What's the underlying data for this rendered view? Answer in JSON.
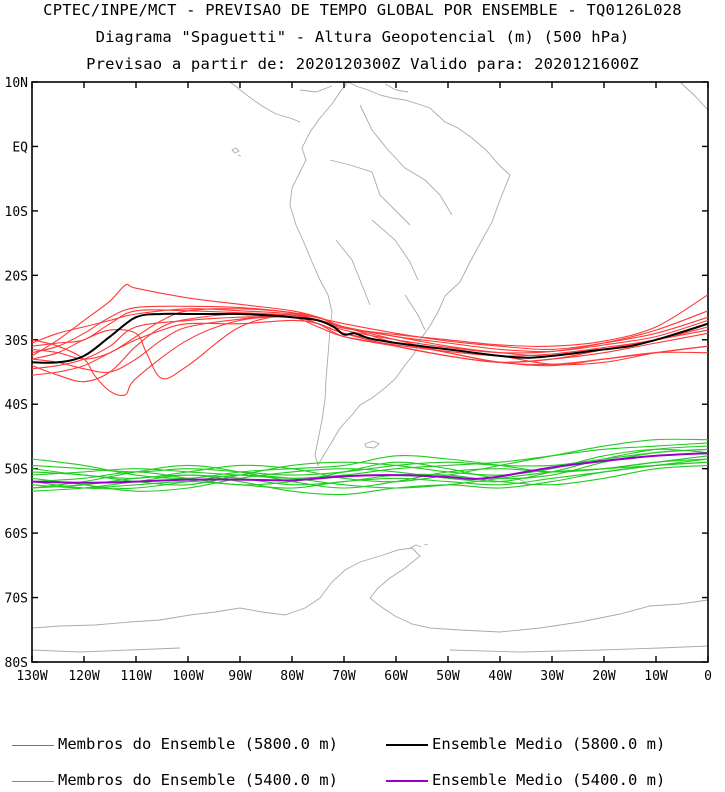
{
  "titles": {
    "line1": "CPTEC/INPE/MCT - PREVISAO DE TEMPO GLOBAL POR ENSEMBLE - TQ0126L028",
    "line2": "Diagrama \"Spaguetti\" - Altura Geopotencial (m) (500 hPa)",
    "line3": "Previsao a partir de: 2020120300Z  Valido para: 2020121600Z"
  },
  "legend": {
    "members_5800": "Membros do Ensemble (5800.0 m)",
    "mean_5800": "Ensemble Medio (5800.0 m)",
    "members_5400": "Membros do Ensemble (5400.0 m)",
    "mean_5400": "Ensemble Medio (5400.0 m)"
  },
  "colors": {
    "members_5800": "#ff3838",
    "mean_5800": "#000000",
    "members_5400": "#22cc22",
    "mean_5400": "#9900cc",
    "coast": "#aaaaaa",
    "axis": "#000000"
  },
  "chart_data": {
    "type": "line",
    "map_projection": "latitude-longitude",
    "xlim": [
      -130,
      0
    ],
    "ylim": [
      -80,
      10
    ],
    "x_ticks": [
      -130,
      -120,
      -110,
      -100,
      -90,
      -80,
      -70,
      -60,
      -50,
      -40,
      -30,
      -20,
      -10,
      0
    ],
    "x_tick_labels": [
      "130W",
      "120W",
      "110W",
      "100W",
      "90W",
      "80W",
      "70W",
      "60W",
      "50W",
      "40W",
      "30W",
      "20W",
      "10W",
      "0"
    ],
    "y_ticks": [
      10,
      0,
      -10,
      -20,
      -30,
      -40,
      -50,
      -60,
      -70,
      -80
    ],
    "y_tick_labels": [
      "10N",
      "EQ",
      "10S",
      "20S",
      "30S",
      "40S",
      "50S",
      "60S",
      "70S",
      "80S"
    ],
    "series": [
      {
        "name": "Ensemble Medio (5800.0 m)",
        "group": "mean_5800",
        "x": [
          -130,
          -125,
          -120,
          -115,
          -110,
          -105,
          -100,
          -95,
          -90,
          -85,
          -80,
          -75,
          -72,
          -70,
          -68,
          -65,
          -60,
          -55,
          -50,
          -45,
          -40,
          -35,
          -30,
          -25,
          -20,
          -15,
          -10,
          -5,
          0
        ],
        "y": [
          -33.5,
          -33.5,
          -32.5,
          -29.5,
          -26.5,
          -26.0,
          -26.0,
          -26.0,
          -26.0,
          -26.2,
          -26.5,
          -27.0,
          -28.0,
          -29.2,
          -29.0,
          -29.8,
          -30.5,
          -31.0,
          -31.5,
          -32.0,
          -32.5,
          -32.8,
          -32.5,
          -32.0,
          -31.5,
          -31.0,
          -30.0,
          -28.8,
          -27.5
        ]
      },
      {
        "name": "Ensemble Medio (5400.0 m)",
        "group": "mean_5400",
        "x": [
          -130,
          -120,
          -110,
          -100,
          -90,
          -80,
          -70,
          -60,
          -50,
          -45,
          -40,
          -30,
          -20,
          -10,
          0
        ],
        "y": [
          -52.0,
          -52.2,
          -52.0,
          -51.7,
          -51.7,
          -51.8,
          -51.2,
          -51.0,
          -51.3,
          -51.6,
          -51.2,
          -49.8,
          -48.8,
          -48.0,
          -47.6
        ]
      },
      {
        "group": "members_5800",
        "x": [
          -130,
          -125,
          -120,
          -115,
          -110,
          -100,
          -90,
          -80,
          -75,
          -70,
          -60,
          -50,
          -40,
          -30,
          -20,
          -10,
          0
        ],
        "y": [
          -31.0,
          -30.5,
          -30.0,
          -27.5,
          -25.5,
          -25.5,
          -25.8,
          -26.2,
          -27.0,
          -28.5,
          -30.0,
          -31.2,
          -32.0,
          -31.8,
          -30.5,
          -28.5,
          -25.5
        ]
      },
      {
        "group": "members_5800",
        "x": [
          -130,
          -125,
          -120,
          -115,
          -110,
          -100,
          -90,
          -80,
          -75,
          -70,
          -60,
          -50,
          -40,
          -30,
          -20,
          -10,
          0
        ],
        "y": [
          -34.5,
          -34.0,
          -33.0,
          -31.0,
          -28.0,
          -27.0,
          -26.5,
          -26.5,
          -27.5,
          -29.5,
          -31.0,
          -32.5,
          -33.5,
          -33.0,
          -32.0,
          -30.5,
          -29.0
        ]
      },
      {
        "group": "members_5800",
        "x": [
          -130,
          -125,
          -120,
          -115,
          -112,
          -110,
          -100,
          -90,
          -80,
          -75,
          -70,
          -60,
          -50,
          -40,
          -30,
          -20,
          -10,
          0
        ],
        "y": [
          -32.5,
          -30.0,
          -27.0,
          -24.0,
          -21.5,
          -22.0,
          -23.5,
          -24.5,
          -25.5,
          -26.5,
          -28.0,
          -29.5,
          -31.0,
          -32.0,
          -32.5,
          -31.5,
          -30.0,
          -27.5
        ]
      },
      {
        "group": "members_5800",
        "x": [
          -130,
          -125,
          -120,
          -115,
          -110,
          -105,
          -100,
          -90,
          -80,
          -70,
          -60,
          -50,
          -40,
          -30,
          -20,
          -10,
          0
        ],
        "y": [
          -33.0,
          -33.5,
          -34.5,
          -35.0,
          -33.0,
          -30.0,
          -28.0,
          -26.8,
          -26.2,
          -28.0,
          -30.5,
          -31.5,
          -32.5,
          -33.8,
          -33.5,
          -32.0,
          -31.0
        ]
      },
      {
        "group": "members_5800",
        "x": [
          -130,
          -125,
          -120,
          -115,
          -110,
          -105,
          -100,
          -90,
          -80,
          -75,
          -70,
          -60,
          -50,
          -40,
          -30,
          -20,
          -10,
          0
        ],
        "y": [
          -35.5,
          -35.0,
          -34.0,
          -32.0,
          -30.0,
          -28.5,
          -27.5,
          -27.5,
          -27.0,
          -27.5,
          -29.0,
          -30.5,
          -32.0,
          -33.5,
          -33.8,
          -33.0,
          -32.0,
          -31.0
        ]
      },
      {
        "group": "members_5800",
        "x": [
          -130,
          -125,
          -120,
          -115,
          -110,
          -105,
          -100,
          -90,
          -80,
          -75,
          -70,
          -60,
          -50,
          -40,
          -30,
          -20,
          -10,
          0
        ],
        "y": [
          -31.5,
          -32.0,
          -33.0,
          -32.0,
          -29.5,
          -27.0,
          -25.5,
          -25.2,
          -25.8,
          -27.0,
          -28.2,
          -29.2,
          -30.0,
          -30.8,
          -31.0,
          -30.2,
          -28.0,
          -23.0
        ]
      },
      {
        "group": "members_5800",
        "x": [
          -130,
          -125,
          -120,
          -118,
          -115,
          -112,
          -110,
          -100,
          -90,
          -80,
          -75,
          -70,
          -60,
          -50,
          -40,
          -30,
          -20,
          -10,
          0
        ],
        "y": [
          -30.0,
          -31.0,
          -33.0,
          -35.5,
          -38.0,
          -38.5,
          -36.0,
          -30.0,
          -27.0,
          -26.5,
          -27.5,
          -29.0,
          -31.0,
          -32.5,
          -33.5,
          -33.0,
          -31.5,
          -30.0,
          -28.5
        ]
      },
      {
        "group": "members_5800",
        "x": [
          -130,
          -125,
          -120,
          -115,
          -110,
          -105,
          -100,
          -90,
          -80,
          -75,
          -70,
          -60,
          -50,
          -40,
          -30,
          -20,
          -10,
          0
        ],
        "y": [
          -34.0,
          -35.5,
          -36.5,
          -35.0,
          -31.0,
          -28.0,
          -26.8,
          -26.0,
          -26.5,
          -28.0,
          -29.5,
          -30.8,
          -31.8,
          -32.5,
          -32.2,
          -31.2,
          -30.0,
          -28.0
        ]
      },
      {
        "group": "members_5800",
        "x": [
          -130,
          -125,
          -120,
          -115,
          -110,
          -108,
          -105,
          -100,
          -90,
          -80,
          -75,
          -70,
          -60,
          -50,
          -40,
          -30,
          -20,
          -10,
          0
        ],
        "y": [
          -33.0,
          -32.0,
          -30.0,
          -28.5,
          -29.0,
          -32.0,
          -36.0,
          -34.0,
          -28.0,
          -26.0,
          -26.5,
          -28.0,
          -30.0,
          -32.0,
          -33.5,
          -34.0,
          -33.0,
          -32.0,
          -32.0
        ]
      },
      {
        "group": "members_5800",
        "x": [
          -130,
          -125,
          -120,
          -115,
          -110,
          -100,
          -90,
          -80,
          -75,
          -70,
          -60,
          -50,
          -40,
          -30,
          -20,
          -10,
          0
        ],
        "y": [
          -30.5,
          -29.0,
          -28.0,
          -27.0,
          -26.0,
          -25.2,
          -25.5,
          -26.0,
          -27.0,
          -28.0,
          -29.5,
          -30.5,
          -31.5,
          -31.8,
          -30.8,
          -29.5,
          -27.0
        ]
      },
      {
        "group": "members_5800",
        "x": [
          -130,
          -125,
          -120,
          -115,
          -110,
          -100,
          -90,
          -80,
          -70,
          -60,
          -50,
          -40,
          -30,
          -20,
          -10,
          0
        ],
        "y": [
          -32.0,
          -31.0,
          -29.0,
          -26.5,
          -25.0,
          -24.8,
          -25.0,
          -25.8,
          -27.5,
          -29.0,
          -30.2,
          -31.0,
          -31.5,
          -30.5,
          -29.0,
          -26.5
        ]
      },
      {
        "group": "members_5400",
        "x": [
          -130,
          -120,
          -110,
          -100,
          -90,
          -80,
          -70,
          -60,
          -50,
          -40,
          -30,
          -20,
          -10,
          0
        ],
        "y": [
          -51.0,
          -50.5,
          -50.0,
          -50.5,
          -51.0,
          -51.5,
          -51.0,
          -50.0,
          -49.5,
          -49.0,
          -48.0,
          -47.0,
          -46.5,
          -46.0
        ]
      },
      {
        "group": "members_5400",
        "x": [
          -130,
          -120,
          -110,
          -100,
          -90,
          -80,
          -70,
          -60,
          -50,
          -40,
          -30,
          -20,
          -10,
          0
        ],
        "y": [
          -52.5,
          -53.0,
          -52.5,
          -52.0,
          -52.5,
          -53.0,
          -52.0,
          -51.5,
          -52.0,
          -52.5,
          -51.5,
          -50.5,
          -49.5,
          -48.5
        ]
      },
      {
        "group": "members_5400",
        "x": [
          -130,
          -120,
          -110,
          -100,
          -90,
          -80,
          -70,
          -60,
          -50,
          -40,
          -30,
          -20,
          -10,
          0
        ],
        "y": [
          -48.5,
          -49.5,
          -51.0,
          -51.5,
          -50.5,
          -50.0,
          -49.5,
          -48.0,
          -48.5,
          -49.5,
          -50.5,
          -50.0,
          -49.0,
          -48.0
        ]
      },
      {
        "group": "members_5400",
        "x": [
          -130,
          -120,
          -110,
          -100,
          -90,
          -80,
          -70,
          -60,
          -50,
          -40,
          -30,
          -20,
          -10,
          0
        ],
        "y": [
          -53.5,
          -53.0,
          -52.0,
          -51.0,
          -52.0,
          -53.5,
          -54.0,
          -53.0,
          -52.5,
          -53.0,
          -52.0,
          -50.5,
          -49.5,
          -49.0
        ]
      },
      {
        "group": "members_5400",
        "x": [
          -130,
          -120,
          -110,
          -100,
          -90,
          -80,
          -70,
          -60,
          -50,
          -40,
          -30,
          -20,
          -10,
          0
        ],
        "y": [
          -50.0,
          -51.0,
          -51.5,
          -50.5,
          -49.5,
          -50.0,
          -51.5,
          -52.0,
          -51.0,
          -49.5,
          -48.0,
          -46.5,
          -45.5,
          -45.5
        ]
      },
      {
        "group": "members_5400",
        "x": [
          -130,
          -120,
          -110,
          -100,
          -90,
          -80,
          -70,
          -60,
          -50,
          -40,
          -30,
          -20,
          -10,
          0
        ],
        "y": [
          -52.0,
          -51.5,
          -50.5,
          -51.5,
          -52.5,
          -52.0,
          -50.5,
          -49.0,
          -50.0,
          -51.5,
          -51.0,
          -49.0,
          -47.5,
          -47.0
        ]
      },
      {
        "group": "members_5400",
        "x": [
          -130,
          -120,
          -110,
          -100,
          -90,
          -80,
          -70,
          -60,
          -50,
          -40,
          -30,
          -20,
          -10,
          0
        ],
        "y": [
          -51.5,
          -52.5,
          -53.5,
          -53.0,
          -51.5,
          -50.5,
          -50.0,
          -50.5,
          -51.5,
          -52.0,
          -50.5,
          -48.5,
          -47.0,
          -46.5
        ]
      },
      {
        "group": "members_5400",
        "x": [
          -130,
          -120,
          -110,
          -100,
          -90,
          -80,
          -70,
          -60,
          -50,
          -40,
          -30,
          -20,
          -10,
          0
        ],
        "y": [
          -53.0,
          -52.0,
          -50.5,
          -49.5,
          -50.5,
          -52.0,
          -53.0,
          -52.0,
          -50.5,
          -50.0,
          -50.5,
          -50.0,
          -49.0,
          -48.5
        ]
      },
      {
        "group": "members_5400",
        "x": [
          -130,
          -120,
          -110,
          -100,
          -90,
          -80,
          -70,
          -60,
          -50,
          -40,
          -30,
          -20,
          -10,
          0
        ],
        "y": [
          -50.5,
          -51.0,
          -52.0,
          -52.5,
          -51.0,
          -49.5,
          -49.0,
          -49.5,
          -50.5,
          -51.0,
          -50.0,
          -48.0,
          -47.0,
          -47.5
        ]
      },
      {
        "group": "members_5400",
        "x": [
          -130,
          -120,
          -110,
          -100,
          -90,
          -80,
          -70,
          -60,
          -50,
          -40,
          -30,
          -20,
          -10,
          0
        ],
        "y": [
          -52.0,
          -53.0,
          -53.0,
          -52.0,
          -51.0,
          -51.5,
          -52.5,
          -53.0,
          -52.5,
          -51.5,
          -50.5,
          -50.0,
          -49.5,
          -49.0
        ]
      },
      {
        "group": "members_5400",
        "x": [
          -130,
          -120,
          -110,
          -100,
          -90,
          -80,
          -70,
          -60,
          -50,
          -40,
          -30,
          -20,
          -10,
          0
        ],
        "y": [
          -49.5,
          -50.0,
          -50.5,
          -50.0,
          -50.5,
          -51.0,
          -50.5,
          -49.5,
          -49.0,
          -49.5,
          -49.5,
          -48.5,
          -47.5,
          -47.0
        ]
      },
      {
        "group": "members_5400",
        "x": [
          -130,
          -120,
          -110,
          -100,
          -90,
          -80,
          -70,
          -60,
          -50,
          -40,
          -30,
          -20,
          -10,
          0
        ],
        "y": [
          -53.0,
          -52.5,
          -51.5,
          -51.0,
          -51.5,
          -52.5,
          -52.0,
          -51.0,
          -51.0,
          -52.0,
          -52.5,
          -51.5,
          -50.0,
          -49.5
        ]
      }
    ]
  }
}
